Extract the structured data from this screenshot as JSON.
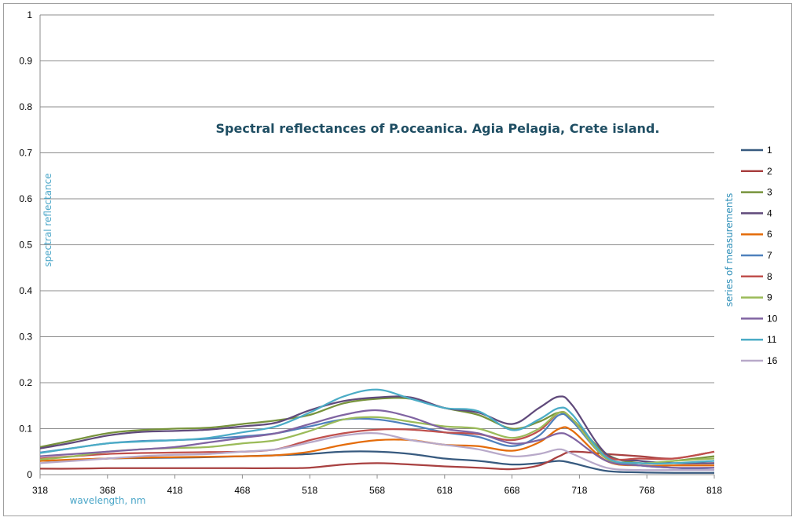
{
  "chart_data": {
    "type": "line",
    "title": "Spectral reflectances of P.oceanica. Agia Pelagia, Crete island.",
    "xlabel": "wavelength, nm",
    "ylabel": "spectral reflectance",
    "legend_title": "series of measurements",
    "legend_position": "right",
    "grid": true,
    "xlim": [
      318,
      818
    ],
    "ylim": [
      0,
      1
    ],
    "x_ticks": [
      "318",
      "368",
      "418",
      "468",
      "518",
      "568",
      "618",
      "668",
      "718",
      "768",
      "818"
    ],
    "y_ticks": [
      "0",
      "0.1",
      "0.2",
      "0.3",
      "0.4",
      "0.5",
      "0.6",
      "0.7",
      "0.8",
      "0.9",
      "1"
    ],
    "x": [
      318,
      343,
      368,
      393,
      418,
      443,
      468,
      493,
      518,
      543,
      568,
      593,
      618,
      643,
      668,
      688,
      703,
      713,
      738,
      763,
      788,
      818
    ],
    "series": [
      {
        "name": "1",
        "color": "#375a7f",
        "values": [
          0.03,
          0.032,
          0.035,
          0.036,
          0.037,
          0.038,
          0.04,
          0.042,
          0.045,
          0.05,
          0.05,
          0.045,
          0.035,
          0.03,
          0.022,
          0.025,
          0.03,
          0.025,
          0.008,
          0.005,
          0.004,
          0.004
        ]
      },
      {
        "name": "2",
        "color": "#a84040",
        "values": [
          0.013,
          0.013,
          0.014,
          0.014,
          0.014,
          0.014,
          0.014,
          0.014,
          0.015,
          0.022,
          0.025,
          0.022,
          0.018,
          0.015,
          0.012,
          0.02,
          0.04,
          0.05,
          0.045,
          0.04,
          0.035,
          0.05
        ]
      },
      {
        "name": "3",
        "color": "#77933c",
        "values": [
          0.06,
          0.075,
          0.09,
          0.097,
          0.1,
          0.102,
          0.11,
          0.118,
          0.13,
          0.155,
          0.165,
          0.165,
          0.145,
          0.13,
          0.1,
          0.115,
          0.135,
          0.12,
          0.045,
          0.025,
          0.03,
          0.04
        ]
      },
      {
        "name": "4",
        "color": "#604a7b",
        "values": [
          0.057,
          0.07,
          0.085,
          0.093,
          0.095,
          0.098,
          0.105,
          0.113,
          0.14,
          0.16,
          0.168,
          0.168,
          0.145,
          0.135,
          0.11,
          0.145,
          0.17,
          0.15,
          0.045,
          0.03,
          0.025,
          0.025
        ]
      },
      {
        "name": "6",
        "color": "#e46c0a",
        "values": [
          0.03,
          0.033,
          0.035,
          0.037,
          0.038,
          0.039,
          0.04,
          0.042,
          0.05,
          0.065,
          0.075,
          0.075,
          0.065,
          0.062,
          0.052,
          0.07,
          0.1,
          0.095,
          0.03,
          0.02,
          0.02,
          0.02
        ]
      },
      {
        "name": "7",
        "color": "#4f81bd",
        "values": [
          0.048,
          0.058,
          0.068,
          0.073,
          0.075,
          0.078,
          0.083,
          0.09,
          0.105,
          0.12,
          0.12,
          0.108,
          0.092,
          0.082,
          0.062,
          0.085,
          0.13,
          0.115,
          0.035,
          0.02,
          0.015,
          0.01
        ]
      },
      {
        "name": "8",
        "color": "#c0504d",
        "values": [
          0.035,
          0.04,
          0.045,
          0.047,
          0.048,
          0.049,
          0.05,
          0.055,
          0.075,
          0.09,
          0.098,
          0.098,
          0.092,
          0.088,
          0.075,
          0.095,
          0.135,
          0.12,
          0.04,
          0.035,
          0.035,
          0.05
        ]
      },
      {
        "name": "9",
        "color": "#9bbb59",
        "values": [
          0.033,
          0.04,
          0.05,
          0.055,
          0.058,
          0.06,
          0.068,
          0.075,
          0.095,
          0.12,
          0.125,
          0.115,
          0.105,
          0.1,
          0.08,
          0.1,
          0.135,
          0.12,
          0.035,
          0.025,
          0.03,
          0.035
        ]
      },
      {
        "name": "10",
        "color": "#8064a2",
        "values": [
          0.04,
          0.045,
          0.05,
          0.055,
          0.06,
          0.07,
          0.08,
          0.09,
          0.11,
          0.13,
          0.14,
          0.125,
          0.1,
          0.09,
          0.068,
          0.075,
          0.09,
          0.08,
          0.03,
          0.02,
          0.015,
          0.015
        ]
      },
      {
        "name": "11",
        "color": "#4bacc6",
        "values": [
          0.047,
          0.058,
          0.068,
          0.072,
          0.075,
          0.08,
          0.092,
          0.105,
          0.135,
          0.17,
          0.185,
          0.165,
          0.145,
          0.138,
          0.097,
          0.12,
          0.145,
          0.13,
          0.038,
          0.025,
          0.025,
          0.03
        ]
      },
      {
        "name": "16",
        "color": "#b8a9c9",
        "values": [
          0.025,
          0.03,
          0.035,
          0.04,
          0.043,
          0.045,
          0.05,
          0.055,
          0.07,
          0.085,
          0.09,
          0.075,
          0.065,
          0.055,
          0.04,
          0.045,
          0.055,
          0.045,
          0.015,
          0.01,
          0.01,
          0.01
        ]
      }
    ]
  }
}
